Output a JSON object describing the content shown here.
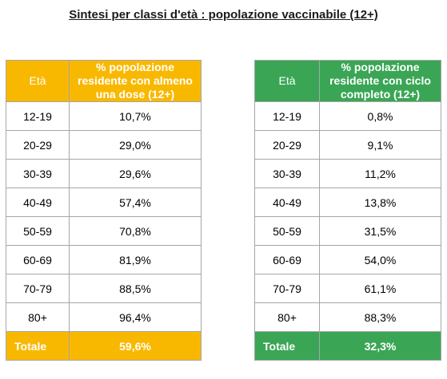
{
  "title": "Sintesi per classi d'età : popolazione vaccinabile (12+)",
  "colors": {
    "first_dose_accent": "#f9b800",
    "full_cycle_accent": "#3aa655",
    "border": "#a6a6a6"
  },
  "first_dose_table": {
    "header_age": "Età",
    "header_value": "% popolazione residente con almeno una dose (12+)",
    "rows": [
      {
        "age": "12-19",
        "value": "10,7%"
      },
      {
        "age": "20-29",
        "value": "29,0%"
      },
      {
        "age": "30-39",
        "value": "29,6%"
      },
      {
        "age": "40-49",
        "value": "57,4%"
      },
      {
        "age": "50-59",
        "value": "70,8%"
      },
      {
        "age": "60-69",
        "value": "81,9%"
      },
      {
        "age": "70-79",
        "value": "88,5%"
      },
      {
        "age": "80+",
        "value": "96,4%"
      }
    ],
    "total_label": "Totale",
    "total_value": "59,6%"
  },
  "full_cycle_table": {
    "header_age": "Età",
    "header_value": "% popolazione residente con ciclo completo (12+)",
    "rows": [
      {
        "age": "12-19",
        "value": "0,8%"
      },
      {
        "age": "20-29",
        "value": "9,1%"
      },
      {
        "age": "30-39",
        "value": "11,2%"
      },
      {
        "age": "40-49",
        "value": "13,8%"
      },
      {
        "age": "50-59",
        "value": "31,5%"
      },
      {
        "age": "60-69",
        "value": "54,0%"
      },
      {
        "age": "70-79",
        "value": "61,1%"
      },
      {
        "age": "80+",
        "value": "88,3%"
      }
    ],
    "total_label": "Totale",
    "total_value": "32,3%"
  }
}
